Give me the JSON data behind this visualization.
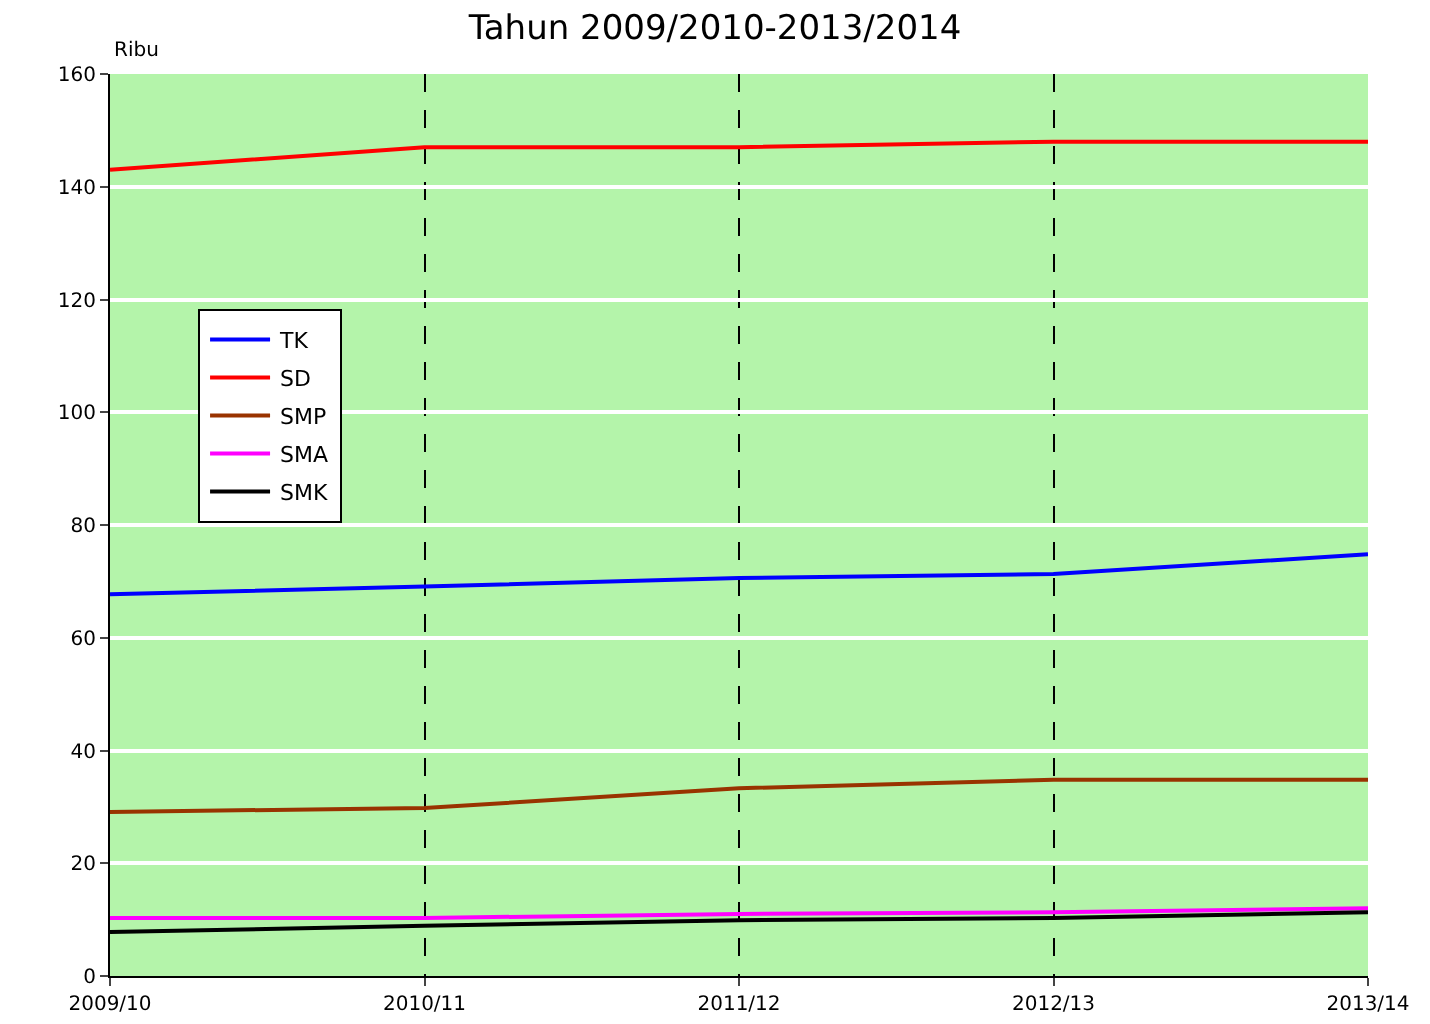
{
  "chart_data": {
    "type": "line",
    "title": "Tahun 2009/2010-2013/2014",
    "ylabel": "Ribu",
    "categories": [
      "2009/10",
      "2010/11",
      "2011/12",
      "2012/13",
      "2013/14"
    ],
    "series": [
      {
        "name": "TK",
        "color": "#0000ff",
        "values": [
          67.7,
          69.1,
          70.6,
          71.3,
          74.8
        ]
      },
      {
        "name": "SD",
        "color": "#ff0000",
        "values": [
          143,
          147,
          147,
          148,
          148
        ]
      },
      {
        "name": "SMP",
        "color": "#993300",
        "values": [
          29.1,
          29.8,
          33.3,
          34.8,
          34.8
        ]
      },
      {
        "name": "SMA",
        "color": "#ff00ff",
        "values": [
          10.3,
          10.3,
          11,
          11.3,
          12
        ]
      },
      {
        "name": "SMK",
        "color": "#000000",
        "values": [
          7.8,
          8.9,
          9.9,
          10.3,
          11.3
        ]
      }
    ],
    "ylim": [
      0,
      160
    ],
    "yticks": [
      0,
      20,
      40,
      60,
      80,
      100,
      120,
      140,
      160
    ],
    "grid": true,
    "legend": "top left",
    "marker": "none",
    "line_style": "solid"
  }
}
